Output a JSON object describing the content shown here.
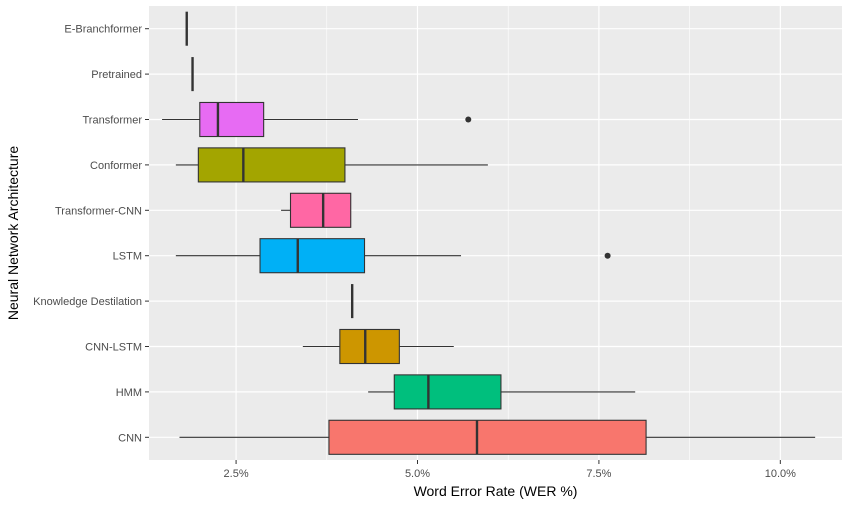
{
  "chart_data": {
    "type": "boxplot",
    "orientation": "horizontal",
    "title": "",
    "xlabel": "Word Error Rate (WER %)",
    "ylabel": "Neural Network Architecture",
    "xlim": [
      1.3,
      10.85
    ],
    "x_ticks": [
      {
        "value": 2.5,
        "label": "2.5%"
      },
      {
        "value": 5.0,
        "label": "5.0%"
      },
      {
        "value": 7.5,
        "label": "7.5%"
      },
      {
        "value": 10.0,
        "label": "10.0%"
      }
    ],
    "x_minor_ticks": [
      1.25,
      3.75,
      6.25,
      8.75
    ],
    "categories": [
      "CNN",
      "HMM",
      "CNN-LSTM",
      "Knowledge Destilation",
      "LSTM",
      "Transformer-CNN",
      "Conformer",
      "Transformer",
      "Pretrained",
      "E-Branchformer"
    ],
    "boxes": [
      {
        "category": "CNN",
        "whisker_low": 1.72,
        "q1": 3.78,
        "median": 5.82,
        "q3": 8.15,
        "whisker_high": 10.48,
        "outliers": [],
        "color": "#F8766D"
      },
      {
        "category": "HMM",
        "whisker_low": 4.32,
        "q1": 4.68,
        "median": 5.15,
        "q3": 6.15,
        "whisker_high": 8.0,
        "outliers": [],
        "color": "#00BF7D"
      },
      {
        "category": "CNN-LSTM",
        "whisker_low": 3.42,
        "q1": 3.93,
        "median": 4.28,
        "q3": 4.75,
        "whisker_high": 5.5,
        "outliers": [],
        "color": "#CD9600"
      },
      {
        "category": "Knowledge Destilation",
        "whisker_low": 4.1,
        "q1": 4.1,
        "median": 4.1,
        "q3": 4.1,
        "whisker_high": 4.1,
        "outliers": [],
        "color": "#7CAE00"
      },
      {
        "category": "LSTM",
        "whisker_low": 1.67,
        "q1": 2.83,
        "median": 3.35,
        "q3": 4.27,
        "whisker_high": 5.6,
        "outliers": [
          7.62
        ],
        "color": "#00B0F6"
      },
      {
        "category": "Transformer-CNN",
        "whisker_low": 3.12,
        "q1": 3.25,
        "median": 3.7,
        "q3": 4.08,
        "whisker_high": 4.08,
        "outliers": [],
        "color": "#FF67A4"
      },
      {
        "category": "Conformer",
        "whisker_low": 1.67,
        "q1": 1.98,
        "median": 2.6,
        "q3": 4.0,
        "whisker_high": 5.97,
        "outliers": [],
        "color": "#A3A500"
      },
      {
        "category": "Transformer",
        "whisker_low": 1.48,
        "q1": 2.0,
        "median": 2.25,
        "q3": 2.88,
        "whisker_high": 4.18,
        "outliers": [
          5.7
        ],
        "color": "#E76BF3"
      },
      {
        "category": "Pretrained",
        "whisker_low": 1.9,
        "q1": 1.9,
        "median": 1.9,
        "q3": 1.9,
        "whisker_high": 1.9,
        "outliers": [],
        "color": "#00BFC4"
      },
      {
        "category": "E-Branchformer",
        "whisker_low": 1.82,
        "q1": 1.82,
        "median": 1.82,
        "q3": 1.82,
        "whisker_high": 1.82,
        "outliers": [],
        "color": "#619CFF"
      }
    ],
    "panel_background": "#EBEBEB",
    "grid_color": "#FFFFFF",
    "legend": "none"
  }
}
